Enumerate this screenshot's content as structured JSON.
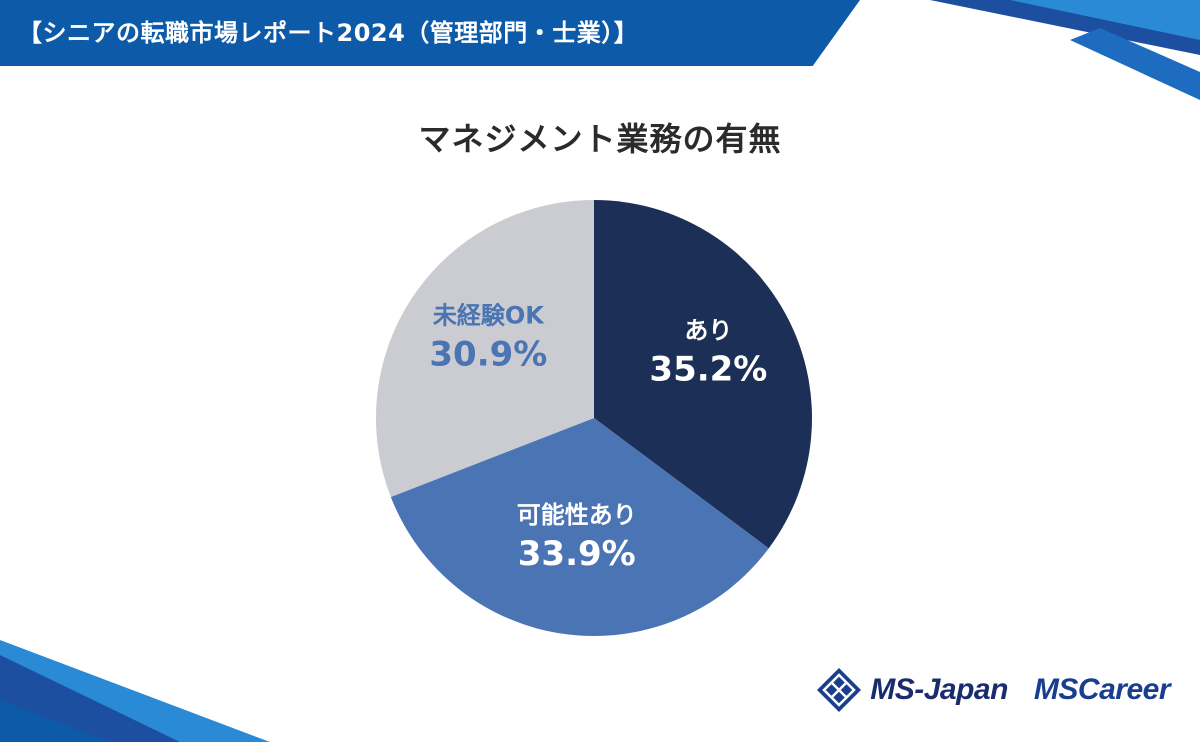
{
  "header": {
    "banner_title": "【シニアの転職市場レポート2024（管理部門・士業）】"
  },
  "chart_data": {
    "type": "pie",
    "title": "マネジメント業務の有無",
    "slices": [
      {
        "label": "あり",
        "value": 35.2,
        "value_text": "35.2%",
        "color": "#1c3057",
        "text_color": "#ffffff"
      },
      {
        "label": "可能性あり",
        "value": 33.9,
        "value_text": "33.9%",
        "color": "#4a74b4",
        "text_color": "#ffffff"
      },
      {
        "label": "未経験OK",
        "value": 30.9,
        "value_text": "30.9%",
        "color": "#cbccd1",
        "text_color": "#4a74b4"
      }
    ],
    "start": "12 o'clock",
    "direction": "clockwise"
  },
  "footer": {
    "logo_msjapan": "MS-Japan",
    "logo_mscareer": "MSCareer"
  },
  "colors": {
    "banner": "#0c5aa8",
    "accent_light": "#2a8ad6",
    "navy": "#1c3057"
  }
}
